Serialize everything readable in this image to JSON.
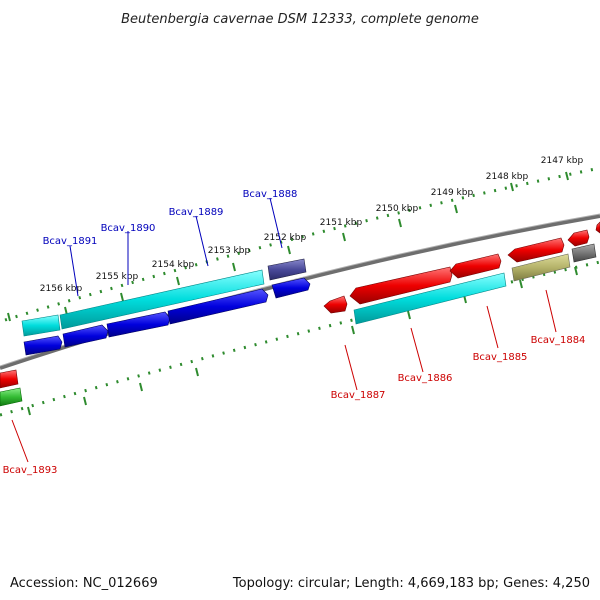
{
  "title": "Beutenbergia cavernae DSM 12333, complete genome",
  "accession": "Accession: NC_012669",
  "summary": "Topology: circular; Length: 4,669,183 bp; Genes: 4,250",
  "colors": {
    "forward_label": "#0000bb",
    "reverse_label": "#cc0000",
    "tick": "#2e8b2e",
    "backbone": "#808080",
    "cds_forward": "#0000dd",
    "cds_reverse": "#ee0000",
    "gene": "#00cccc",
    "rna_like": "#4a4a9a",
    "olive": "#b5b36a",
    "grey": "#777777",
    "green": "#33bb33"
  },
  "tick_labels": {
    "t2147": "2147 kbp",
    "t2148": "2148 kbp",
    "t2149": "2149 kbp",
    "t2150": "2150 kbp",
    "t2151": "2151 kbp",
    "t2152": "2152 kbp",
    "t2153": "2153 kbp",
    "t2154": "2154 kbp",
    "t2155": "2155 kbp",
    "t2156": "2156 kbp"
  },
  "genes": {
    "bcav_1891": "Bcav_1891",
    "bcav_1890": "Bcav_1890",
    "bcav_1889": "Bcav_1889",
    "bcav_1888": "Bcav_1888",
    "bcav_1887": "Bcav_1887",
    "bcav_1886": "Bcav_1886",
    "bcav_1885": "Bcav_1885",
    "bcav_1884": "Bcav_1884",
    "bcav_1893": "Bcav_1893"
  }
}
